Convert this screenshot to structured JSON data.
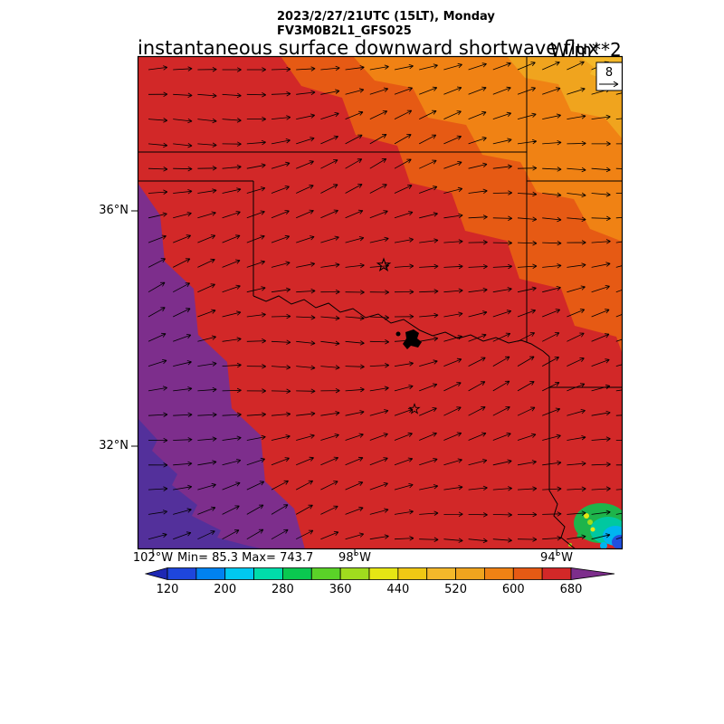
{
  "header": {
    "valid_time": "2023/2/27/21UTC (15LT), Monday",
    "model": "FV3M0B2L1_GFS025",
    "title": "instantaneous surface downward shortwave flux",
    "units": "W/m**2"
  },
  "map": {
    "stats": "Min= 85.3 Max= 743.7",
    "ref_value": "8",
    "lat_labels": [
      "36°N",
      "32°N"
    ],
    "lon_labels": [
      "102°W",
      "98°W",
      "94°W"
    ]
  },
  "colors": {
    "map_bands": {
      "red": "#d22828",
      "orange_dark": "#e65a14",
      "orange": "#f08214",
      "orange_light": "#f0a41e",
      "gold": "#f4b82a",
      "purple": "#7d2e8c",
      "indigo": "#53309b"
    },
    "cloud_patch": {
      "green": "#1eb44b",
      "teal": "#00c8a0",
      "cyan": "#00b4f0",
      "blue": "#2050e0",
      "yellow": "#e6e614",
      "lime": "#a0dc1e"
    }
  },
  "colorbar": {
    "tick_labels": [
      "120",
      "200",
      "280",
      "360",
      "440",
      "520",
      "600",
      "680"
    ],
    "segment_colors": [
      "#1e46dc",
      "#0082f0",
      "#00c8f0",
      "#00dcaa",
      "#0ac850",
      "#5ad228",
      "#a0dc1e",
      "#e6e614",
      "#f0c814",
      "#f4b82a",
      "#f0a41e",
      "#f08214",
      "#e65a14",
      "#d22828"
    ],
    "under_color": "#1e28b4",
    "over_color": "#7d2e8c"
  },
  "chart_data": {
    "type": "heatmap",
    "title": "instantaneous surface downward shortwave flux",
    "units": "W/m**2",
    "valid_time": "2023/2/27/21UTC (15LT), Monday",
    "model_run": "FV3M0B2L1_GFS025",
    "field_min": 85.3,
    "field_max": 743.7,
    "color_scale": {
      "boundaries": [
        120,
        160,
        200,
        240,
        280,
        320,
        360,
        400,
        440,
        480,
        520,
        560,
        600,
        640,
        680
      ],
      "colors": [
        "#1e46dc",
        "#0082f0",
        "#00c8f0",
        "#00dcaa",
        "#0ac850",
        "#5ad228",
        "#a0dc1e",
        "#e6e614",
        "#f0c814",
        "#f4b82a",
        "#f0a41e",
        "#f08214",
        "#e65a14",
        "#d22828"
      ],
      "under_color": "#1e28b4",
      "over_color": "#7d2e8c",
      "labeled_ticks": [
        120,
        200,
        280,
        360,
        440,
        520,
        600,
        680
      ]
    },
    "x_axis": {
      "label_ticks": [
        "102°W",
        "98°W",
        "94°W"
      ]
    },
    "y_axis": {
      "label_ticks": [
        "36°N",
        "32°N"
      ]
    },
    "wind_vectors": {
      "reference_magnitude": 8,
      "direction": "predominantly westerly; arrows point east to east-northeast over the whole domain"
    },
    "region": "Texas / Oklahoma area with state borders, Red River and Lake Texoma drawn; two star city markers",
    "spatial_pattern": "flux >680 W/m**2 (purple) in the southwest corner grading through red (640-680) over central Texas/Oklahoma to orange bands (~480-640) toward the northeast corner; small cloudy patch with values ~120-400 (blue/cyan/green/yellow) in the far southeast corner"
  }
}
